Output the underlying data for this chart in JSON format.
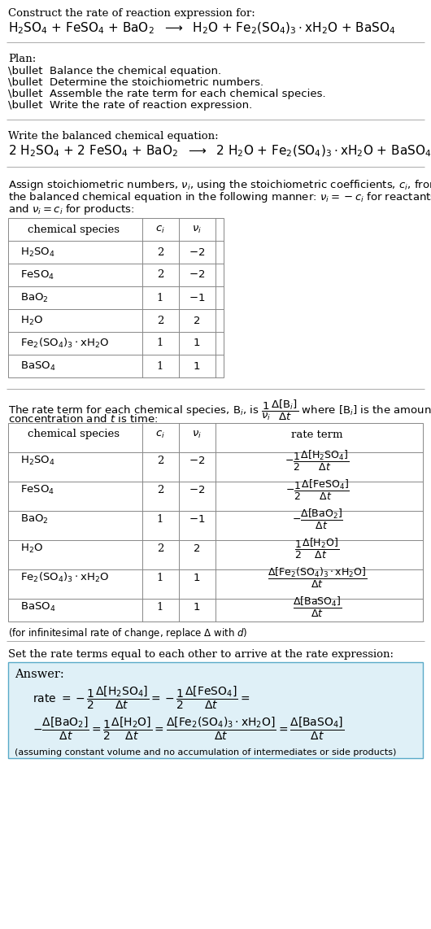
{
  "bg_color": "#ffffff",
  "font_serif": "DejaVu Serif",
  "font_size_body": 9.5,
  "font_size_reaction": 11,
  "font_size_table": 9.5,
  "sections": {
    "title": "Construct the rate of reaction expression for:",
    "rxn_unbalanced": "H$_2$SO$_4$ + FeSO$_4$ + BaO$_2$  $\\longrightarrow$  H$_2$O + Fe$_2$(SO$_4$)$_3\\cdot$xH$_2$O + BaSO$_4$",
    "plan_header": "Plan:",
    "plan_items": [
      "\\bullet  Balance the chemical equation.",
      "\\bullet  Determine the stoichiometric numbers.",
      "\\bullet  Assemble the rate term for each chemical species.",
      "\\bullet  Write the rate of reaction expression."
    ],
    "balanced_header": "Write the balanced chemical equation:",
    "rxn_balanced": "2 H$_2$SO$_4$ + 2 FeSO$_4$ + BaO$_2$  $\\longrightarrow$  2 H$_2$O + Fe$_2$(SO$_4$)$_3\\cdot$xH$_2$O + BaSO$_4$",
    "stoich_intro_parts": [
      "Assign stoichiometric numbers, $\\nu_i$, using the stoichiometric coefficients, $c_i$, from",
      "the balanced chemical equation in the following manner: $\\nu_i = -c_i$ for reactants",
      "and $\\nu_i = c_i$ for products:"
    ],
    "table1_col_headers": [
      "chemical species",
      "c_i",
      "v_i"
    ],
    "table1_rows": [
      [
        "H$_2$SO$_4$",
        "2",
        "-2"
      ],
      [
        "FeSO$_4$",
        "2",
        "-2"
      ],
      [
        "BaO$_2$",
        "1",
        "-1"
      ],
      [
        "H$_2$O",
        "2",
        "2"
      ],
      [
        "Fe$_2$(SO$_4$)$_3\\cdot$xH$_2$O",
        "1",
        "1"
      ],
      [
        "BaSO$_4$",
        "1",
        "1"
      ]
    ],
    "rate_intro_parts": [
      "The rate term for each chemical species, B$_i$, is $\\dfrac{1}{\\nu_i}\\dfrac{\\Delta[\\mathrm{B}_i]}{\\Delta t}$ where [B$_i$] is the amount",
      "concentration and $t$ is time:"
    ],
    "table2_col_headers": [
      "chemical species",
      "c_i",
      "v_i",
      "rate term"
    ],
    "table2_rows": [
      [
        "H$_2$SO$_4$",
        "2",
        "-2",
        "rt1"
      ],
      [
        "FeSO$_4$",
        "2",
        "-2",
        "rt2"
      ],
      [
        "BaO$_2$",
        "1",
        "-1",
        "rt3"
      ],
      [
        "H$_2$O",
        "2",
        "2",
        "rt4"
      ],
      [
        "Fe$_2$(SO$_4$)$_3\\cdot$xH$_2$O",
        "1",
        "1",
        "rt5"
      ],
      [
        "BaSO$_4$",
        "1",
        "1",
        "rt6"
      ]
    ],
    "infinitesimal_note": "(for infinitesimal rate of change, replace $\\Delta$ with $d$)",
    "rate_eq_header": "Set the rate terms equal to each other to arrive at the rate expression:",
    "answer_label": "Answer:",
    "answer_box_bg": "#dff0f7",
    "answer_box_border": "#5aaac8",
    "assumption": "(assuming constant volume and no accumulation of intermediates or side products)"
  }
}
